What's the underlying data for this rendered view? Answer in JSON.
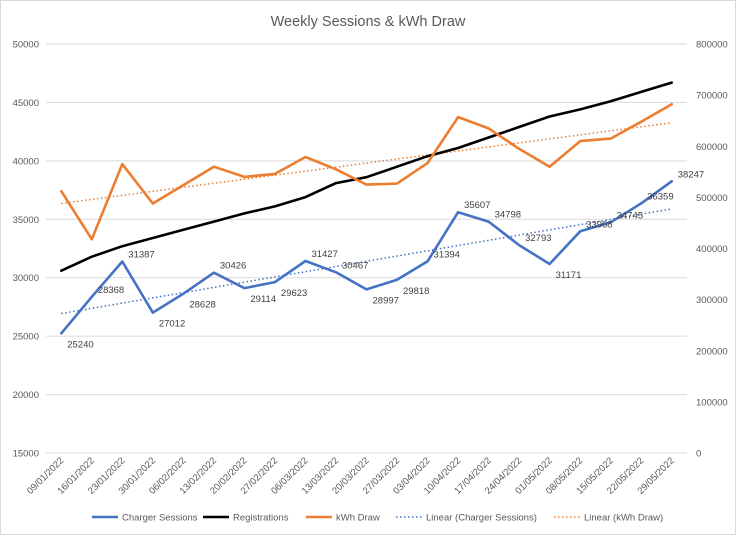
{
  "chart_data": {
    "type": "line",
    "title": "Weekly Sessions & kWh Draw",
    "categories": [
      "09/01/2022",
      "16/01/2022",
      "23/01/2022",
      "30/01/2022",
      "06/02/2022",
      "13/02/2022",
      "20/02/2022",
      "27/02/2022",
      "06/03/2022",
      "13/03/2022",
      "20/03/2022",
      "27/03/2022",
      "03/04/2022",
      "10/04/2022",
      "17/04/2022",
      "24/04/2022",
      "01/05/2022",
      "08/05/2022",
      "15/05/2022",
      "22/05/2022",
      "29/05/2022"
    ],
    "y_left": {
      "min": 15000,
      "max": 50000,
      "step": 5000,
      "ticks": [
        "15000",
        "20000",
        "25000",
        "30000",
        "35000",
        "40000",
        "45000",
        "50000"
      ]
    },
    "y_right": {
      "min": 0,
      "max": 800000,
      "step": 100000,
      "ticks": [
        "0",
        "100000",
        "200000",
        "300000",
        "400000",
        "500000",
        "600000",
        "700000",
        "800000"
      ]
    },
    "grid": true,
    "legend_position": "bottom",
    "series": [
      {
        "name": "Charger Sessions",
        "axis": "left",
        "color": "#4472c4",
        "values": [
          25240,
          28368,
          31387,
          27012,
          28628,
          30426,
          29114,
          29623,
          31427,
          30467,
          28997,
          29818,
          31394,
          35607,
          34798,
          32793,
          31171,
          33968,
          34745,
          36359,
          38247
        ],
        "labels": [
          "25240",
          "28368",
          "31387",
          "27012",
          "28628",
          "30426",
          "29114",
          "29623",
          "31427",
          "30467",
          "28997",
          "29818",
          "31394",
          "35607",
          "34798",
          "32793",
          "31171",
          "33968",
          "34745",
          "36359",
          "38247"
        ]
      },
      {
        "name": "Registrations",
        "axis": "left",
        "color": "#000000",
        "values": [
          30600,
          31800,
          32700,
          33400,
          34100,
          34800,
          35500,
          36100,
          36900,
          38100,
          38600,
          39500,
          40400,
          41100,
          42000,
          42900,
          43800,
          44400,
          45100,
          45900,
          46700
        ]
      },
      {
        "name": "kWh Draw",
        "axis": "right",
        "color": "#ed7d31",
        "values": [
          512000,
          418000,
          565000,
          488000,
          524000,
          560000,
          540000,
          546000,
          579000,
          555000,
          525000,
          527000,
          567000,
          657000,
          635000,
          595000,
          560000,
          610000,
          615000,
          648000,
          682000
        ]
      },
      {
        "name": "Linear (Charger Sessions)",
        "axis": "left",
        "color": "#4472c4",
        "dashed": true,
        "trend_of": 0
      },
      {
        "name": "Linear (kWh Draw)",
        "axis": "right",
        "color": "#ed7d31",
        "dashed": true,
        "trend_of": 2
      }
    ]
  }
}
